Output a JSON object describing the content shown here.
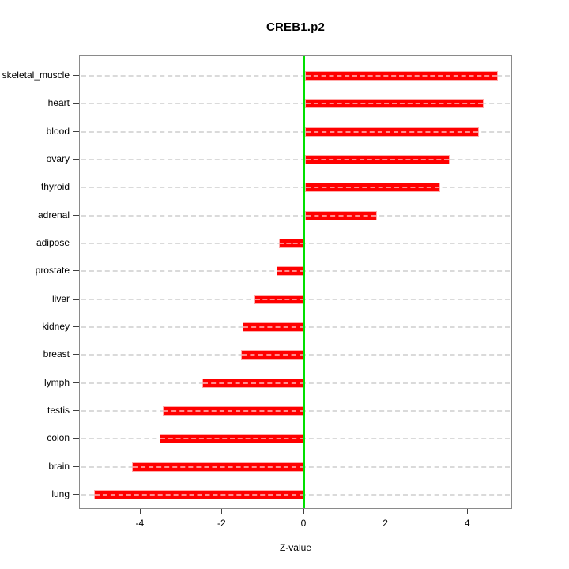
{
  "chart_data": {
    "type": "bar",
    "orientation": "horizontal",
    "title": "CREB1.p2",
    "xlabel": "Z-value",
    "ylabel": "",
    "categories": [
      "skeletal_muscle",
      "heart",
      "blood",
      "ovary",
      "thyroid",
      "adrenal",
      "adipose",
      "prostate",
      "liver",
      "kidney",
      "breast",
      "lymph",
      "testis",
      "colon",
      "brain",
      "lung"
    ],
    "values": [
      4.68,
      4.33,
      4.2,
      3.49,
      3.26,
      1.72,
      -0.59,
      -0.65,
      -1.19,
      -1.49,
      -1.52,
      -2.47,
      -3.44,
      -3.51,
      -4.19,
      -5.11
    ],
    "xticks": [
      -4,
      -2,
      0,
      2,
      4
    ],
    "xtick_labels": [
      "-4",
      "-2",
      "0",
      "2",
      "4"
    ],
    "xlim": [
      -5.5,
      5.1
    ],
    "bar_color": "#ff0000",
    "bar_border_color": "#ffabab",
    "zero_line_color": "#00e000",
    "grid_color": "#dadada",
    "box_color": "#8a8a8a",
    "grid": "horizontal dotted line per category",
    "legend": "none"
  }
}
